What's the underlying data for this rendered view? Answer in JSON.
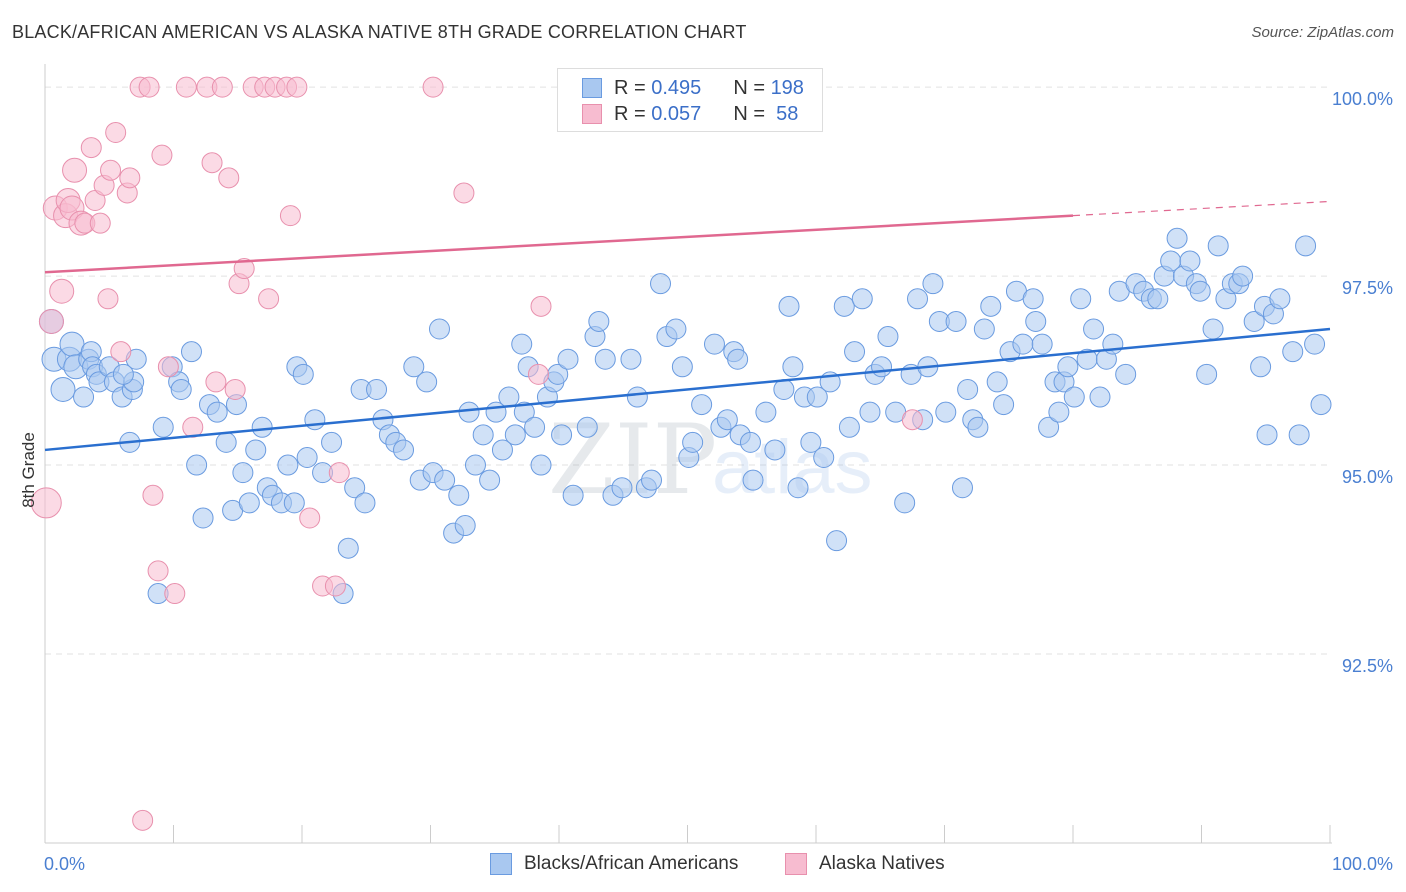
{
  "header": {
    "title": "BLACK/AFRICAN AMERICAN VS ALASKA NATIVE 8TH GRADE CORRELATION CHART",
    "source": "Source: ZipAtlas.com"
  },
  "legend": {
    "rows": [
      {
        "r_label": "R =",
        "r_value": "0.495",
        "n_label": "N =",
        "n_value": "198",
        "color": "#a9c8f0",
        "border": "#6a9be0"
      },
      {
        "r_label": "R =",
        "r_value": "0.057",
        "n_label": "N =",
        "n_value": " 58",
        "color": "#f7bcd0",
        "border": "#e890ad"
      }
    ]
  },
  "bottom_legend": [
    {
      "label": "Blacks/African Americans",
      "color": "#a9c8f0",
      "border": "#6a9be0"
    },
    {
      "label": "Alaska Natives",
      "color": "#f7bcd0",
      "border": "#e890ad"
    }
  ],
  "watermark": {
    "zip": "ZIP",
    "atlas": "atlas"
  },
  "chart_data": {
    "type": "scatter",
    "title": "BLACK/AFRICAN AMERICAN VS ALASKA NATIVE 8TH GRADE CORRELATION CHART",
    "xlabel": "",
    "ylabel": "8th Grade",
    "xlim": [
      0,
      100
    ],
    "ylim": [
      90.0,
      100.2
    ],
    "x_tick_labels": [
      "0.0%",
      "100.0%"
    ],
    "y_ticks": [
      92.5,
      95.0,
      97.5,
      100.0
    ],
    "y_tick_labels": [
      "92.5%",
      "95.0%",
      "97.5%",
      "100.0%"
    ],
    "grid": true,
    "legend_position": "top-center",
    "series": [
      {
        "name": "Blacks/African Americans",
        "color": "#a9c8f0",
        "line_color": "#2a6fcf",
        "trend": {
          "x0": 0,
          "y0": 95.2,
          "x1": 100,
          "y1": 96.8
        },
        "points": [
          [
            0.5,
            96.9
          ],
          [
            0.7,
            96.4
          ],
          [
            1.4,
            96.0
          ],
          [
            1.9,
            96.4
          ],
          [
            2.1,
            96.6
          ],
          [
            2.4,
            96.3
          ],
          [
            3.0,
            95.9
          ],
          [
            3.4,
            96.4
          ],
          [
            3.6,
            96.5
          ],
          [
            3.7,
            96.3
          ],
          [
            4.0,
            96.2
          ],
          [
            4.2,
            96.1
          ],
          [
            5.0,
            96.3
          ],
          [
            5.4,
            96.1
          ],
          [
            6.0,
            95.9
          ],
          [
            6.6,
            95.3
          ],
          [
            6.8,
            96.0
          ],
          [
            6.9,
            96.1
          ],
          [
            7.1,
            96.4
          ],
          [
            6.1,
            96.2
          ],
          [
            8.8,
            93.3
          ],
          [
            9.2,
            95.5
          ],
          [
            9.9,
            96.3
          ],
          [
            10.4,
            96.1
          ],
          [
            10.6,
            96.0
          ],
          [
            11.4,
            96.5
          ],
          [
            11.8,
            95.0
          ],
          [
            12.3,
            94.3
          ],
          [
            12.8,
            95.8
          ],
          [
            13.4,
            95.7
          ],
          [
            14.1,
            95.3
          ],
          [
            14.6,
            94.4
          ],
          [
            14.9,
            95.8
          ],
          [
            15.4,
            94.9
          ],
          [
            15.9,
            94.5
          ],
          [
            16.4,
            95.2
          ],
          [
            16.9,
            95.5
          ],
          [
            17.3,
            94.7
          ],
          [
            17.7,
            94.6
          ],
          [
            18.4,
            94.5
          ],
          [
            18.9,
            95.0
          ],
          [
            19.4,
            94.5
          ],
          [
            19.6,
            96.3
          ],
          [
            20.1,
            96.2
          ],
          [
            20.4,
            95.1
          ],
          [
            21.0,
            95.6
          ],
          [
            21.6,
            94.9
          ],
          [
            22.3,
            95.3
          ],
          [
            23.2,
            93.3
          ],
          [
            23.6,
            93.9
          ],
          [
            24.1,
            94.7
          ],
          [
            24.9,
            94.5
          ],
          [
            24.6,
            96.0
          ],
          [
            25.8,
            96.0
          ],
          [
            26.3,
            95.6
          ],
          [
            26.8,
            95.4
          ],
          [
            27.3,
            95.3
          ],
          [
            27.9,
            95.2
          ],
          [
            28.7,
            96.3
          ],
          [
            29.2,
            94.8
          ],
          [
            29.7,
            96.1
          ],
          [
            30.2,
            94.9
          ],
          [
            30.7,
            96.8
          ],
          [
            31.1,
            94.8
          ],
          [
            31.8,
            94.1
          ],
          [
            32.2,
            94.6
          ],
          [
            32.7,
            94.2
          ],
          [
            33.0,
            95.7
          ],
          [
            33.5,
            95.0
          ],
          [
            34.1,
            95.4
          ],
          [
            34.6,
            94.8
          ],
          [
            35.1,
            95.7
          ],
          [
            35.6,
            95.2
          ],
          [
            36.1,
            95.9
          ],
          [
            36.6,
            95.4
          ],
          [
            37.1,
            96.6
          ],
          [
            37.3,
            95.7
          ],
          [
            37.6,
            96.3
          ],
          [
            38.1,
            95.5
          ],
          [
            38.6,
            95.0
          ],
          [
            39.1,
            95.9
          ],
          [
            39.6,
            96.1
          ],
          [
            39.9,
            96.2
          ],
          [
            40.2,
            95.4
          ],
          [
            40.7,
            96.4
          ],
          [
            41.1,
            94.6
          ],
          [
            42.2,
            95.5
          ],
          [
            42.8,
            96.7
          ],
          [
            43.1,
            96.9
          ],
          [
            43.6,
            96.4
          ],
          [
            44.2,
            94.6
          ],
          [
            44.9,
            94.7
          ],
          [
            45.6,
            96.4
          ],
          [
            46.1,
            95.9
          ],
          [
            46.8,
            94.7
          ],
          [
            47.2,
            94.8
          ],
          [
            47.9,
            97.4
          ],
          [
            48.4,
            96.7
          ],
          [
            49.1,
            96.8
          ],
          [
            49.6,
            96.3
          ],
          [
            50.1,
            95.1
          ],
          [
            50.4,
            95.3
          ],
          [
            51.1,
            95.8
          ],
          [
            52.1,
            96.6
          ],
          [
            52.6,
            95.5
          ],
          [
            53.1,
            95.6
          ],
          [
            53.6,
            96.5
          ],
          [
            53.9,
            96.4
          ],
          [
            54.1,
            95.4
          ],
          [
            54.9,
            95.3
          ],
          [
            55.1,
            94.8
          ],
          [
            56.1,
            95.7
          ],
          [
            56.8,
            95.2
          ],
          [
            57.5,
            96.0
          ],
          [
            57.9,
            97.1
          ],
          [
            58.2,
            96.3
          ],
          [
            58.6,
            94.7
          ],
          [
            59.1,
            95.9
          ],
          [
            59.6,
            95.3
          ],
          [
            60.1,
            95.9
          ],
          [
            60.6,
            95.1
          ],
          [
            61.1,
            96.1
          ],
          [
            61.6,
            94.0
          ],
          [
            62.2,
            97.1
          ],
          [
            62.6,
            95.5
          ],
          [
            63.0,
            96.5
          ],
          [
            63.6,
            97.2
          ],
          [
            64.2,
            95.7
          ],
          [
            64.6,
            96.2
          ],
          [
            65.1,
            96.3
          ],
          [
            65.6,
            96.7
          ],
          [
            66.2,
            95.7
          ],
          [
            66.9,
            94.5
          ],
          [
            67.4,
            96.2
          ],
          [
            67.9,
            97.2
          ],
          [
            68.3,
            95.6
          ],
          [
            68.7,
            96.3
          ],
          [
            69.1,
            97.4
          ],
          [
            69.6,
            96.9
          ],
          [
            70.1,
            95.7
          ],
          [
            70.9,
            96.9
          ],
          [
            71.4,
            94.7
          ],
          [
            71.8,
            96.0
          ],
          [
            72.2,
            95.6
          ],
          [
            72.6,
            95.5
          ],
          [
            73.1,
            96.8
          ],
          [
            73.6,
            97.1
          ],
          [
            74.1,
            96.1
          ],
          [
            74.6,
            95.8
          ],
          [
            75.1,
            96.5
          ],
          [
            75.6,
            97.3
          ],
          [
            76.1,
            96.6
          ],
          [
            76.9,
            97.2
          ],
          [
            77.1,
            96.9
          ],
          [
            77.6,
            96.6
          ],
          [
            78.1,
            95.5
          ],
          [
            78.6,
            96.1
          ],
          [
            78.9,
            95.7
          ],
          [
            79.3,
            96.1
          ],
          [
            79.6,
            96.3
          ],
          [
            80.1,
            95.9
          ],
          [
            80.6,
            97.2
          ],
          [
            81.1,
            96.4
          ],
          [
            81.6,
            96.8
          ],
          [
            82.1,
            95.9
          ],
          [
            82.6,
            96.4
          ],
          [
            83.1,
            96.6
          ],
          [
            83.6,
            97.3
          ],
          [
            84.1,
            96.2
          ],
          [
            84.9,
            97.4
          ],
          [
            85.5,
            97.3
          ],
          [
            86.1,
            97.2
          ],
          [
            86.6,
            97.2
          ],
          [
            87.1,
            97.5
          ],
          [
            87.6,
            97.7
          ],
          [
            88.1,
            98.0
          ],
          [
            88.6,
            97.5
          ],
          [
            89.1,
            97.7
          ],
          [
            89.6,
            97.4
          ],
          [
            89.9,
            97.3
          ],
          [
            90.4,
            96.2
          ],
          [
            90.9,
            96.8
          ],
          [
            91.3,
            97.9
          ],
          [
            91.9,
            97.2
          ],
          [
            92.4,
            97.4
          ],
          [
            92.9,
            97.4
          ],
          [
            93.2,
            97.5
          ],
          [
            94.1,
            96.9
          ],
          [
            94.6,
            96.3
          ],
          [
            94.9,
            97.1
          ],
          [
            95.1,
            95.4
          ],
          [
            95.6,
            97.0
          ],
          [
            96.1,
            97.2
          ],
          [
            97.1,
            96.5
          ],
          [
            97.6,
            95.4
          ],
          [
            98.1,
            97.9
          ],
          [
            98.8,
            96.6
          ],
          [
            99.3,
            95.8
          ]
        ]
      },
      {
        "name": "Alaska Natives",
        "color": "#f7bcd0",
        "line_color": "#e06890",
        "trend": {
          "x0": 0,
          "y0": 97.55,
          "x1": 80,
          "y1": 98.3
        },
        "points": [
          [
            0.1,
            94.5
          ],
          [
            0.5,
            96.9
          ],
          [
            0.8,
            98.4
          ],
          [
            1.3,
            97.3
          ],
          [
            1.6,
            98.3
          ],
          [
            1.8,
            98.5
          ],
          [
            2.1,
            98.4
          ],
          [
            2.3,
            98.9
          ],
          [
            2.8,
            98.2
          ],
          [
            3.1,
            98.2
          ],
          [
            3.6,
            99.2
          ],
          [
            3.9,
            98.5
          ],
          [
            4.3,
            98.2
          ],
          [
            4.6,
            98.7
          ],
          [
            4.9,
            97.2
          ],
          [
            5.1,
            98.9
          ],
          [
            5.5,
            99.4
          ],
          [
            5.9,
            96.5
          ],
          [
            6.4,
            98.6
          ],
          [
            6.6,
            98.8
          ],
          [
            7.4,
            100.0
          ],
          [
            7.6,
            90.3
          ],
          [
            8.1,
            100.0
          ],
          [
            8.4,
            94.6
          ],
          [
            8.8,
            93.6
          ],
          [
            9.1,
            99.1
          ],
          [
            9.6,
            96.3
          ],
          [
            10.1,
            93.3
          ],
          [
            11.0,
            100.0
          ],
          [
            11.5,
            95.5
          ],
          [
            12.6,
            100.0
          ],
          [
            13.0,
            99.0
          ],
          [
            13.3,
            96.1
          ],
          [
            13.8,
            100.0
          ],
          [
            14.3,
            98.8
          ],
          [
            14.8,
            96.0
          ],
          [
            15.1,
            97.4
          ],
          [
            15.5,
            97.6
          ],
          [
            16.2,
            100.0
          ],
          [
            17.1,
            100.0
          ],
          [
            17.4,
            97.2
          ],
          [
            17.9,
            100.0
          ],
          [
            18.8,
            100.0
          ],
          [
            19.1,
            98.3
          ],
          [
            19.6,
            100.0
          ],
          [
            20.6,
            94.3
          ],
          [
            21.6,
            93.4
          ],
          [
            22.6,
            93.4
          ],
          [
            22.9,
            94.9
          ],
          [
            30.2,
            100.0
          ],
          [
            32.6,
            98.6
          ],
          [
            38.4,
            96.2
          ],
          [
            38.6,
            97.1
          ],
          [
            41.1,
            100.0
          ],
          [
            42.2,
            100.0
          ],
          [
            44.4,
            100.0
          ],
          [
            45.2,
            100.0
          ],
          [
            67.5,
            95.6
          ]
        ]
      }
    ]
  }
}
